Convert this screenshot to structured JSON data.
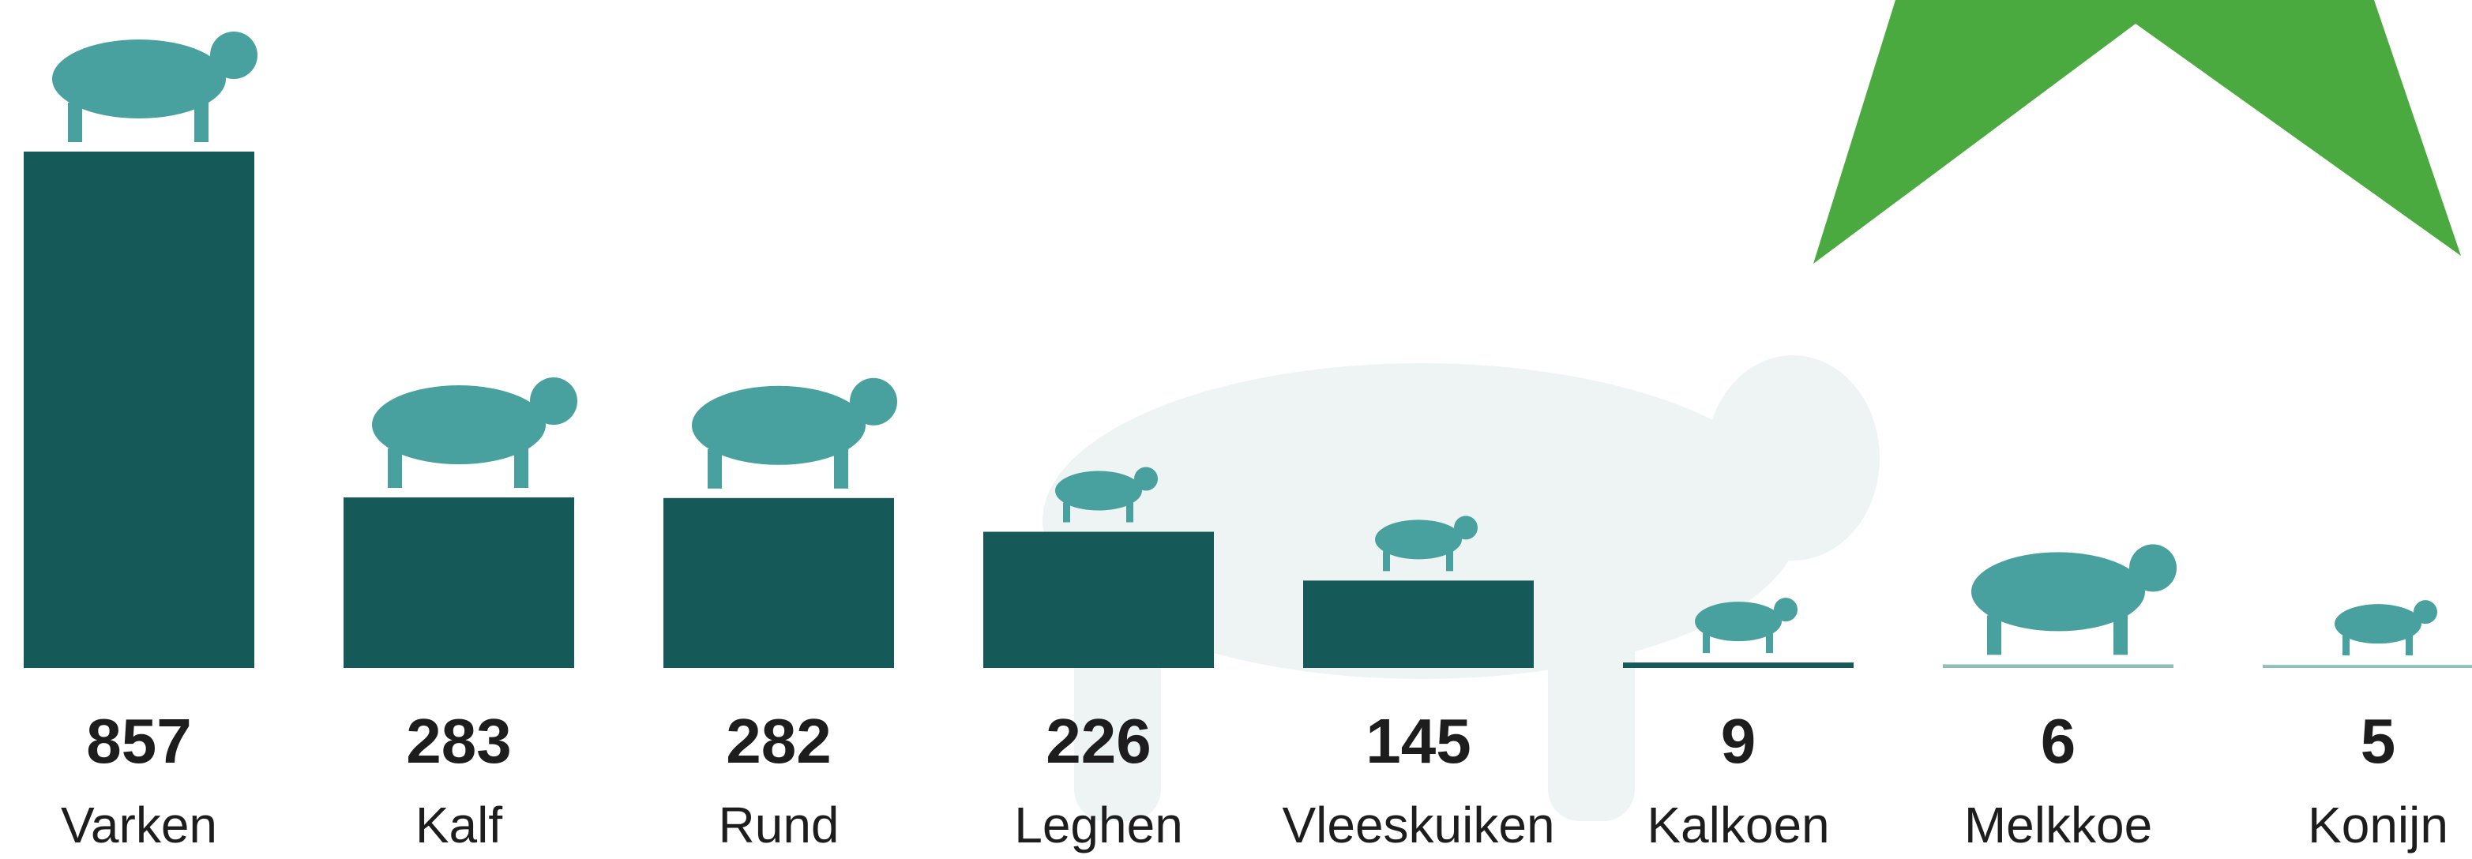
{
  "chart_data": {
    "type": "bar",
    "categories": [
      "Varken",
      "Kalf",
      "Rund",
      "Leghen",
      "Vleeskuiken",
      "Kalkoen",
      "Melkkoe",
      "Konijn"
    ],
    "values": [
      857,
      283,
      282,
      226,
      145,
      9,
      6,
      5
    ],
    "colors": [
      "#155a58",
      "#155a58",
      "#155a58",
      "#155a58",
      "#155a58",
      "#155a58",
      "#8fbfbb",
      "#8fbfbb"
    ]
  }
}
